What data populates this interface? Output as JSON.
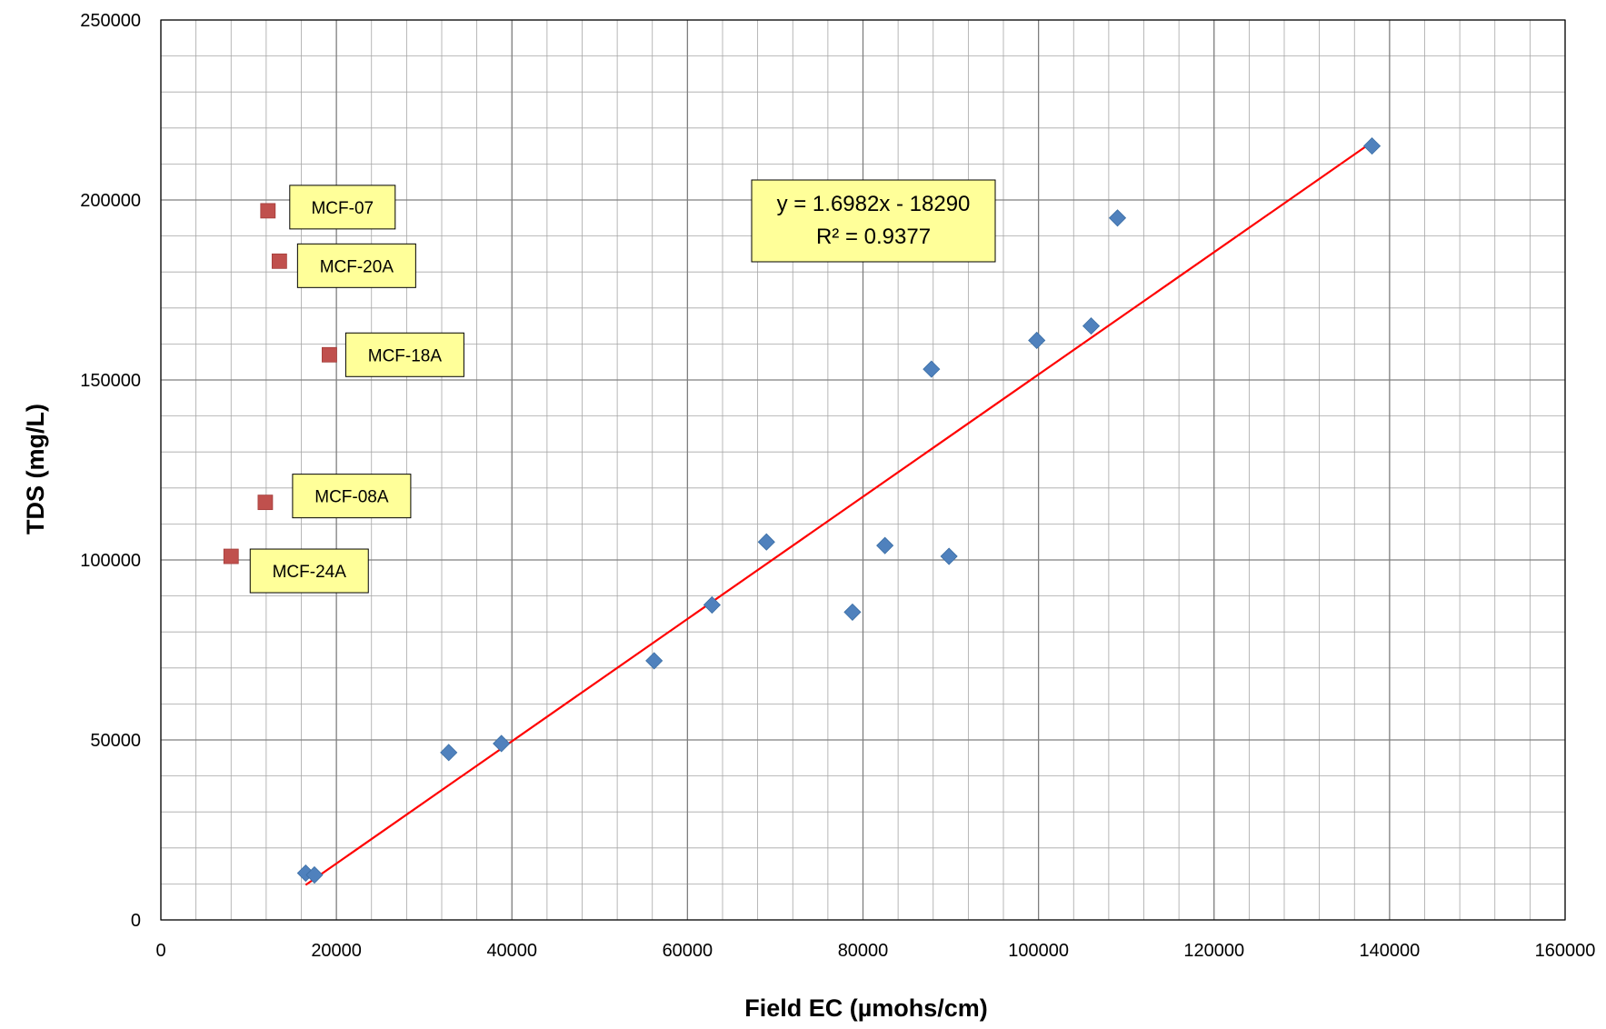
{
  "chart_data": {
    "type": "scatter",
    "title": "",
    "xlabel": "Field EC  (µmohs/cm)",
    "ylabel": "TDS  (mg/L)",
    "xlim": [
      0,
      160000
    ],
    "ylim": [
      0,
      250000
    ],
    "x_major_ticks": [
      0,
      20000,
      40000,
      60000,
      80000,
      100000,
      120000,
      140000,
      160000
    ],
    "y_major_ticks": [
      0,
      50000,
      100000,
      150000,
      200000,
      250000
    ],
    "x_minor_step": 4000,
    "y_minor_step": 10000,
    "grid": true,
    "legend": "none",
    "series": [
      {
        "marker": "diamond",
        "color": "#4f81bd",
        "points": [
          {
            "x": 16500,
            "y": 13000
          },
          {
            "x": 17500,
            "y": 12500
          },
          {
            "x": 32800,
            "y": 46500
          },
          {
            "x": 38800,
            "y": 49000
          },
          {
            "x": 56200,
            "y": 72000
          },
          {
            "x": 62800,
            "y": 87500
          },
          {
            "x": 69000,
            "y": 105000
          },
          {
            "x": 78800,
            "y": 85500
          },
          {
            "x": 82500,
            "y": 104000
          },
          {
            "x": 87800,
            "y": 153000
          },
          {
            "x": 89800,
            "y": 101000
          },
          {
            "x": 99800,
            "y": 161000
          },
          {
            "x": 106000,
            "y": 165000
          },
          {
            "x": 109000,
            "y": 195000
          },
          {
            "x": 138000,
            "y": 215000
          }
        ]
      },
      {
        "marker": "square",
        "color": "#c0504d",
        "points": [
          {
            "x": 12200,
            "y": 197000,
            "label": "MCF-07"
          },
          {
            "x": 13500,
            "y": 183000,
            "label": "MCF-20A"
          },
          {
            "x": 19200,
            "y": 157000,
            "label": "MCF-18A"
          },
          {
            "x": 11900,
            "y": 116000,
            "label": "MCF-08A"
          },
          {
            "x": 8000,
            "y": 101000,
            "label": "MCF-24A"
          }
        ]
      }
    ],
    "trendline": {
      "type": "linear",
      "color": "#ff0000",
      "slope": 1.6982,
      "intercept": -18290,
      "x_range": [
        16500,
        138000
      ],
      "equation_label": "y = 1.6982x - 18290",
      "r2_label": "R² = 0.9377"
    },
    "callout_color": "#ffff99"
  }
}
